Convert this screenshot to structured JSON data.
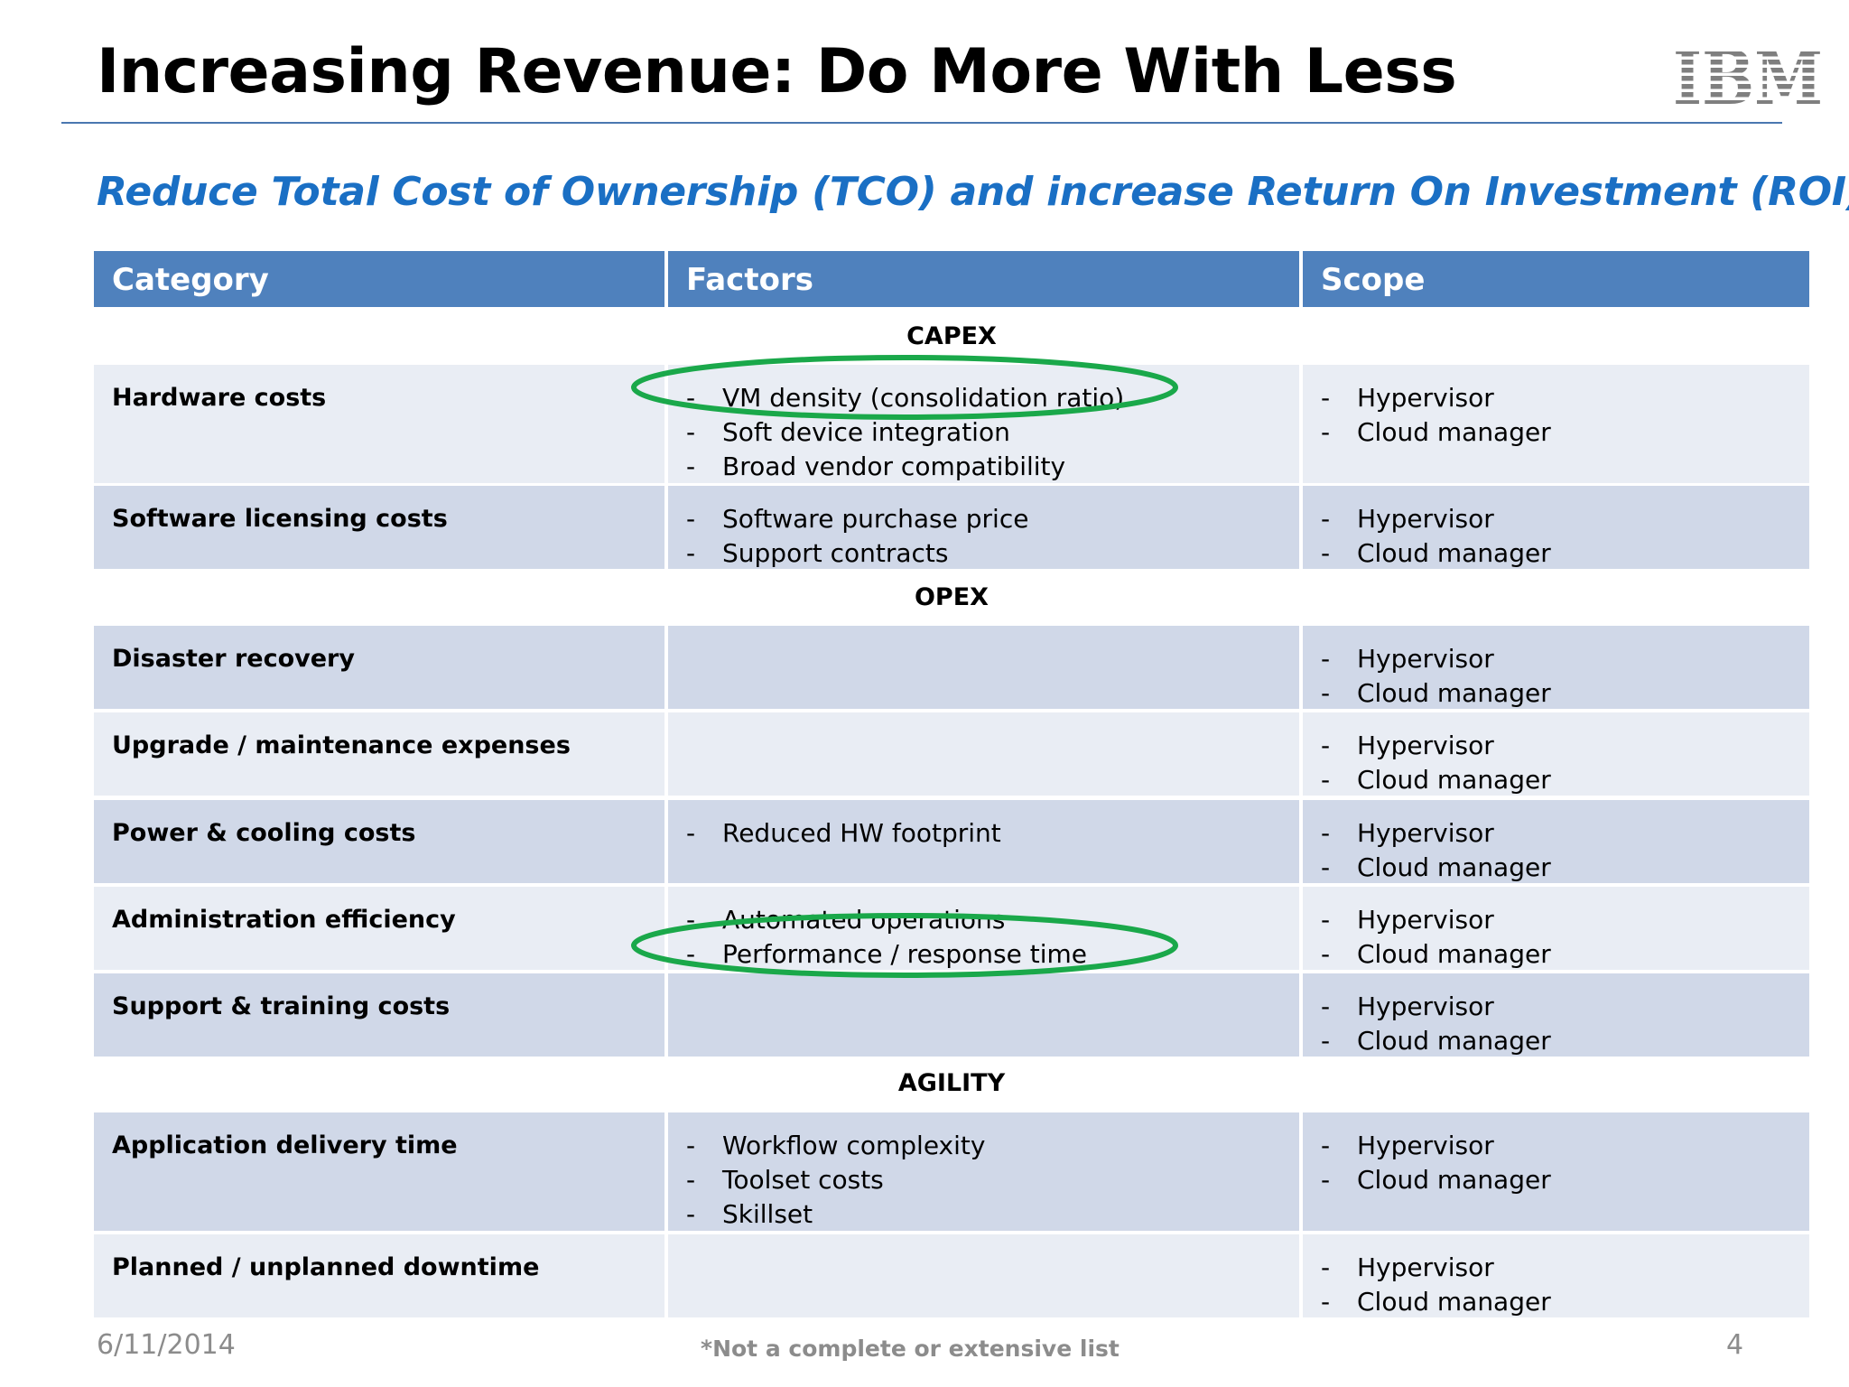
{
  "slide": {
    "title": "Increasing Revenue: Do More With Less",
    "subtitle": "Reduce Total Cost of Ownership (TCO) and increase Return On Investment (ROI)",
    "logo_text": "IBM",
    "date": "6/11/2014",
    "footnote": "*Not a complete or extensive list",
    "page_number": "4",
    "colors": {
      "header": "#4f81bd",
      "accent_blue": "#1a6fc4",
      "oval": "#1aa84a"
    }
  },
  "table": {
    "headers": [
      "Category",
      "Factors",
      "Scope"
    ],
    "sections": [
      "CAPEX",
      "OPEX",
      "AGILITY"
    ],
    "bullet": "-",
    "rows": [
      {
        "category": "Hardware costs",
        "factors": [
          "VM density (consolidation ratio)",
          "Soft device integration",
          "Broad vendor compatibility"
        ],
        "scope": [
          "Hypervisor",
          "Cloud manager"
        ]
      },
      {
        "category": "Software licensing costs",
        "factors": [
          "Software purchase price",
          "Support contracts"
        ],
        "scope": [
          "Hypervisor",
          "Cloud manager"
        ]
      },
      {
        "category": "Disaster recovery",
        "factors": [],
        "scope": [
          "Hypervisor",
          "Cloud manager"
        ]
      },
      {
        "category": "Upgrade / maintenance expenses",
        "factors": [],
        "scope": [
          "Hypervisor",
          "Cloud manager"
        ]
      },
      {
        "category": "Power & cooling costs",
        "factors": [
          "Reduced HW footprint"
        ],
        "scope": [
          "Hypervisor",
          "Cloud manager"
        ]
      },
      {
        "category": "Administration efficiency",
        "factors": [
          "Automated operations",
          "Performance / response time"
        ],
        "scope": [
          "Hypervisor",
          "Cloud manager"
        ]
      },
      {
        "category": "Support & training costs",
        "factors": [],
        "scope": [
          "Hypervisor",
          "Cloud manager"
        ]
      },
      {
        "category": "Application delivery time",
        "factors": [
          "Workflow complexity",
          "Toolset costs",
          "Skillset"
        ],
        "scope": [
          "Hypervisor",
          "Cloud manager"
        ]
      },
      {
        "category": "Planned  / unplanned downtime",
        "factors": [],
        "scope": [
          "Hypervisor",
          "Cloud manager"
        ]
      }
    ]
  }
}
